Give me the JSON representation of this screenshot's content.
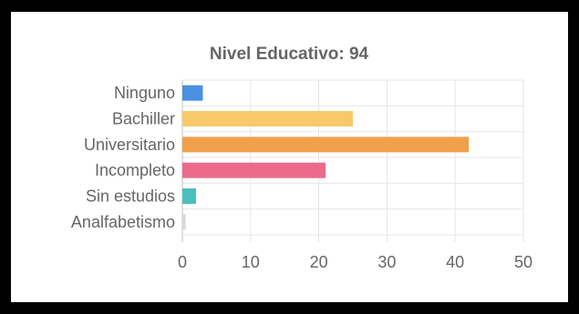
{
  "chart_data": {
    "type": "bar",
    "orientation": "horizontal",
    "title": "Nivel Educativo: 94",
    "categories": [
      "Ninguno",
      "Bachiller",
      "Universitario",
      "Incompleto",
      "Sin estudios",
      "Analfabetismo"
    ],
    "values": [
      3,
      25,
      42,
      21,
      2,
      0.5
    ],
    "colors": [
      "#4a90e2",
      "#f7c96a",
      "#f0a04b",
      "#ec6b8a",
      "#4bbfbf",
      "#d9d9d9"
    ],
    "xlabel": "",
    "ylabel": "",
    "xlim": [
      0,
      50
    ],
    "xticks": [
      0,
      10,
      20,
      30,
      40,
      50
    ],
    "grid": true,
    "legend": "none"
  }
}
